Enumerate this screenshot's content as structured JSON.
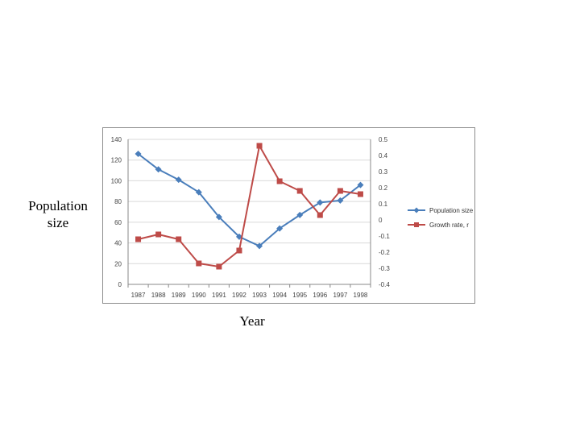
{
  "labels": {
    "y_line1": "Population",
    "y_line2": "size",
    "x": "Year"
  },
  "chart_data": {
    "type": "line",
    "categories": [
      "1987",
      "1988",
      "1989",
      "1990",
      "1991",
      "1992",
      "1993",
      "1994",
      "1995",
      "1996",
      "1997",
      "1998"
    ],
    "xlabel": "Year",
    "ylabel": "Population size",
    "y_left": {
      "lim": [
        0,
        140
      ],
      "ticks": [
        "0",
        "20",
        "40",
        "60",
        "80",
        "100",
        "120",
        "140"
      ]
    },
    "y_right": {
      "lim": [
        -0.4,
        0.5
      ],
      "ticks": [
        "-0.4",
        "-0.3",
        "-0.2",
        "-0.1",
        "0",
        "0.1",
        "0.2",
        "0.3",
        "0.4",
        "0.5"
      ]
    },
    "grid": "horizontal",
    "legend_position": "right",
    "series": [
      {
        "name": "Population size",
        "axis": "left",
        "color": "#4a7ebb",
        "marker": "diamond",
        "values": [
          126,
          111,
          101,
          89,
          65,
          46,
          37,
          54,
          67,
          79,
          81,
          96
        ]
      },
      {
        "name": "Growth rate, r",
        "axis": "right",
        "color": "#be4b48",
        "marker": "square",
        "values": [
          -0.12,
          -0.09,
          -0.12,
          -0.27,
          -0.29,
          -0.19,
          0.46,
          0.24,
          0.18,
          0.03,
          0.18,
          0.16
        ]
      }
    ]
  }
}
